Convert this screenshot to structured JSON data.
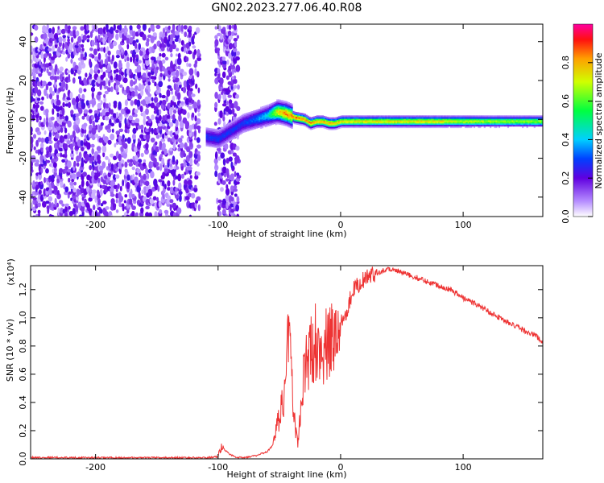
{
  "title": "GN02.2023.277.06.40.R08",
  "chart_data": [
    {
      "type": "heatmap",
      "xlabel": "Height of straight line (km)",
      "ylabel": "Frequency (Hz)",
      "xlim": [
        -253,
        165
      ],
      "ylim": [
        -50,
        49
      ],
      "xticks": [
        -200,
        -100,
        0,
        100
      ],
      "yticks": [
        -40,
        -20,
        0,
        20,
        40
      ],
      "colorbar": {
        "label": "Normalized spectral amplitude",
        "range": [
          0,
          1
        ],
        "ticks": [
          0.0,
          0.2,
          0.4,
          0.6,
          0.8
        ],
        "colormap": "rainbow (white-violet-blue-cyan-green-yellow-red-magenta)"
      },
      "noise_regions": [
        [
          -253,
          -116
        ],
        [
          -102,
          -83
        ]
      ],
      "blank_region": [
        -116,
        -102
      ],
      "ridge": {
        "x": [
          -110,
          -100,
          -90,
          -80,
          -70,
          -60,
          -52,
          -45,
          -38,
          -30,
          -25,
          -20,
          -15,
          -10,
          -5,
          0,
          20,
          50,
          80,
          100,
          130,
          165
        ],
        "frequency": [
          -9,
          -10,
          -6,
          -2,
          0,
          2,
          4,
          3,
          1,
          0,
          -2,
          -1,
          -1,
          -2,
          -2,
          -1,
          -1,
          -1,
          -1,
          -1,
          -1,
          -1
        ],
        "amplitude": [
          0.3,
          0.3,
          0.3,
          0.3,
          0.35,
          0.45,
          0.8,
          0.9,
          0.9,
          0.9,
          0.9,
          0.85,
          0.85,
          0.85,
          0.85,
          0.8,
          0.8,
          0.8,
          0.8,
          0.75,
          0.7,
          0.7
        ]
      }
    },
    {
      "type": "line",
      "xlabel": "Height of straight line (km)",
      "ylabel": "SNR (10 * v/v)",
      "y_multiplier": "(x10⁴)",
      "xlim": [
        -253,
        165
      ],
      "ylim": [
        0,
        1.37
      ],
      "xticks": [
        -200,
        -100,
        0,
        100
      ],
      "yticks": [
        0.0,
        0.2,
        0.4,
        0.6,
        0.8,
        1.0,
        1.2
      ],
      "color": "#ee3333",
      "series": [
        {
          "x": [
            -253,
            -200,
            -150,
            -110,
            -100,
            -97,
            -90,
            -85,
            -80,
            -70,
            -60,
            -55,
            -50,
            -45,
            -42,
            -40,
            -38,
            -35,
            -30,
            -25,
            -20,
            -15,
            -10,
            -5,
            0,
            5,
            10,
            20,
            30,
            40,
            50,
            60,
            70,
            80,
            90,
            95,
            100,
            110,
            120,
            130,
            140,
            150,
            160,
            165
          ],
          "values": [
            0.01,
            0.008,
            0.008,
            0.008,
            0.015,
            0.08,
            0.03,
            0.01,
            0.01,
            0.02,
            0.05,
            0.1,
            0.3,
            0.5,
            1.05,
            0.6,
            0.3,
            0.1,
            0.6,
            0.75,
            0.85,
            0.78,
            0.8,
            0.87,
            0.97,
            1.05,
            1.2,
            1.28,
            1.32,
            1.35,
            1.32,
            1.29,
            1.26,
            1.23,
            1.2,
            1.17,
            1.14,
            1.1,
            1.05,
            1.0,
            0.95,
            0.91,
            0.87,
            0.82
          ]
        }
      ]
    }
  ]
}
